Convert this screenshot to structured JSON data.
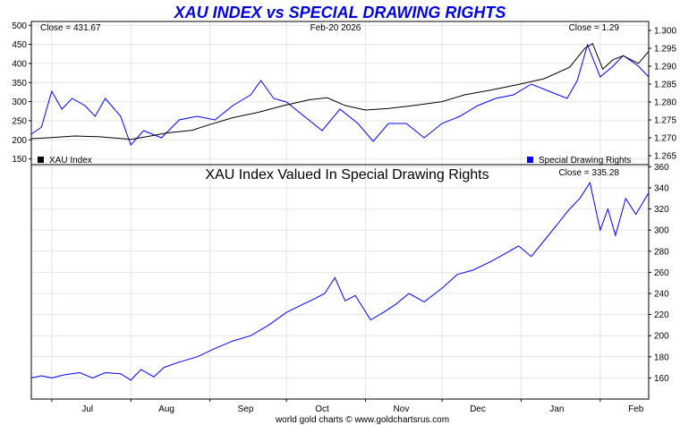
{
  "title": "XAU INDEX vs SPECIAL DRAWING RIGHTS",
  "footer": "world gold charts © www.goldchartsrus.com",
  "top_panel": {
    "close_left": "Close = 431.67",
    "date": "Feb-20  2026",
    "close_right": "Close = 1.29",
    "legend_left": "XAU Index",
    "legend_right": "Special Drawing Rights"
  },
  "bottom_panel": {
    "subtitle": "XAU Index Valued In Special Drawing Rights",
    "close": "Close = 335.28"
  },
  "colors": {
    "xau": "#000000",
    "sdr": "#0000ff",
    "title": "#0000dd"
  },
  "x_labels": [
    "Jul",
    "Aug",
    "Sep",
    "Oct",
    "Nov",
    "Dec",
    "Jan",
    "Feb"
  ],
  "chart_data": [
    {
      "type": "line",
      "panel": "top",
      "title": "XAU INDEX vs SPECIAL DRAWING RIGHTS",
      "x_range": [
        "2025-06-23",
        "2026-02-20"
      ],
      "y_left": {
        "ylim": [
          135,
          510
        ],
        "ticks": [
          150,
          200,
          250,
          300,
          350,
          400,
          450,
          500
        ]
      },
      "y_right": {
        "ylim": [
          1.2625,
          1.3025
        ],
        "ticks": [
          1.265,
          1.27,
          1.275,
          1.28,
          1.285,
          1.29,
          1.295,
          1.3
        ]
      },
      "grid": true,
      "series": [
        {
          "name": "XAU Index",
          "axis": "left",
          "points": [
            [
              "2025-06-23",
              203
            ],
            [
              "2025-07-01",
              206
            ],
            [
              "2025-07-10",
              210
            ],
            [
              "2025-07-20",
              208
            ],
            [
              "2025-08-01",
              201
            ],
            [
              "2025-08-08",
              209
            ],
            [
              "2025-08-15",
              218
            ],
            [
              "2025-08-25",
              225
            ],
            [
              "2025-09-01",
              240
            ],
            [
              "2025-09-10",
              258
            ],
            [
              "2025-09-20",
              272
            ],
            [
              "2025-09-30",
              290
            ],
            [
              "2025-10-10",
              305
            ],
            [
              "2025-10-17",
              310
            ],
            [
              "2025-10-24",
              290
            ],
            [
              "2025-11-01",
              278
            ],
            [
              "2025-11-10",
              282
            ],
            [
              "2025-11-20",
              290
            ],
            [
              "2025-12-01",
              300
            ],
            [
              "2025-12-10",
              318
            ],
            [
              "2025-12-20",
              330
            ],
            [
              "2025-12-31",
              345
            ],
            [
              "2026-01-10",
              360
            ],
            [
              "2026-01-20",
              390
            ],
            [
              "2026-01-26",
              440
            ],
            [
              "2026-01-29",
              452
            ],
            [
              "2026-02-02",
              385
            ],
            [
              "2026-02-06",
              410
            ],
            [
              "2026-02-10",
              420
            ],
            [
              "2026-02-16",
              400
            ],
            [
              "2026-02-20",
              431.67
            ]
          ]
        },
        {
          "name": "Special Drawing Rights",
          "axis": "right",
          "points": [
            [
              "2025-06-23",
              1.271
            ],
            [
              "2025-06-27",
              1.273
            ],
            [
              "2025-07-01",
              1.283
            ],
            [
              "2025-07-05",
              1.278
            ],
            [
              "2025-07-09",
              1.281
            ],
            [
              "2025-07-14",
              1.279
            ],
            [
              "2025-07-18",
              1.276
            ],
            [
              "2025-07-22",
              1.281
            ],
            [
              "2025-07-28",
              1.276
            ],
            [
              "2025-08-01",
              1.268
            ],
            [
              "2025-08-06",
              1.272
            ],
            [
              "2025-08-13",
              1.27
            ],
            [
              "2025-08-20",
              1.275
            ],
            [
              "2025-08-27",
              1.276
            ],
            [
              "2025-09-03",
              1.275
            ],
            [
              "2025-09-10",
              1.279
            ],
            [
              "2025-09-17",
              1.282
            ],
            [
              "2025-09-21",
              1.286
            ],
            [
              "2025-09-26",
              1.281
            ],
            [
              "2025-10-01",
              1.28
            ],
            [
              "2025-10-08",
              1.276
            ],
            [
              "2025-10-15",
              1.272
            ],
            [
              "2025-10-22",
              1.278
            ],
            [
              "2025-10-29",
              1.274
            ],
            [
              "2025-11-04",
              1.269
            ],
            [
              "2025-11-10",
              1.274
            ],
            [
              "2025-11-17",
              1.274
            ],
            [
              "2025-11-24",
              1.27
            ],
            [
              "2025-12-01",
              1.274
            ],
            [
              "2025-12-08",
              1.276
            ],
            [
              "2025-12-15",
              1.279
            ],
            [
              "2025-12-22",
              1.281
            ],
            [
              "2025-12-29",
              1.282
            ],
            [
              "2026-01-05",
              1.285
            ],
            [
              "2026-01-12",
              1.283
            ],
            [
              "2026-01-19",
              1.281
            ],
            [
              "2026-01-23",
              1.286
            ],
            [
              "2026-01-27",
              1.296
            ],
            [
              "2026-02-01",
              1.287
            ],
            [
              "2026-02-06",
              1.29
            ],
            [
              "2026-02-10",
              1.293
            ],
            [
              "2026-02-16",
              1.29
            ],
            [
              "2026-02-20",
              1.287
            ]
          ]
        }
      ]
    },
    {
      "type": "line",
      "panel": "bottom",
      "title": "XAU Index Valued In Special Drawing Rights",
      "x_range": [
        "2025-06-23",
        "2026-02-20"
      ],
      "y_right": {
        "ylim": [
          140,
          362
        ],
        "ticks": [
          160,
          180,
          200,
          220,
          240,
          260,
          280,
          300,
          320,
          340,
          360
        ]
      },
      "grid": true,
      "series": [
        {
          "name": "XAU Index Valued In Special Drawing Rights",
          "axis": "right",
          "points": [
            [
              "2025-06-23",
              160
            ],
            [
              "2025-06-27",
              162
            ],
            [
              "2025-07-01",
              160
            ],
            [
              "2025-07-06",
              163
            ],
            [
              "2025-07-12",
              165
            ],
            [
              "2025-07-17",
              160
            ],
            [
              "2025-07-22",
              165
            ],
            [
              "2025-07-28",
              164
            ],
            [
              "2025-08-01",
              158
            ],
            [
              "2025-08-05",
              168
            ],
            [
              "2025-08-10",
              161
            ],
            [
              "2025-08-14",
              170
            ],
            [
              "2025-08-20",
              175
            ],
            [
              "2025-08-27",
              180
            ],
            [
              "2025-09-03",
              188
            ],
            [
              "2025-09-10",
              195
            ],
            [
              "2025-09-17",
              200
            ],
            [
              "2025-09-24",
              210
            ],
            [
              "2025-10-01",
              222
            ],
            [
              "2025-10-06",
              228
            ],
            [
              "2025-10-12",
              235
            ],
            [
              "2025-10-16",
              240
            ],
            [
              "2025-10-20",
              255
            ],
            [
              "2025-10-24",
              233
            ],
            [
              "2025-10-28",
              238
            ],
            [
              "2025-11-03",
              215
            ],
            [
              "2025-11-08",
              222
            ],
            [
              "2025-11-13",
              230
            ],
            [
              "2025-11-18",
              240
            ],
            [
              "2025-11-24",
              232
            ],
            [
              "2025-12-01",
              245
            ],
            [
              "2025-12-07",
              258
            ],
            [
              "2025-12-13",
              262
            ],
            [
              "2025-12-20",
              270
            ],
            [
              "2025-12-26",
              278
            ],
            [
              "2025-12-31",
              285
            ],
            [
              "2026-01-05",
              275
            ],
            [
              "2026-01-10",
              290
            ],
            [
              "2026-01-15",
              305
            ],
            [
              "2026-01-20",
              320
            ],
            [
              "2026-01-24",
              330
            ],
            [
              "2026-01-28",
              345
            ],
            [
              "2026-02-01",
              300
            ],
            [
              "2026-02-04",
              320
            ],
            [
              "2026-02-07",
              295
            ],
            [
              "2026-02-11",
              330
            ],
            [
              "2026-02-15",
              315
            ],
            [
              "2026-02-20",
              335.28
            ]
          ]
        }
      ]
    }
  ]
}
